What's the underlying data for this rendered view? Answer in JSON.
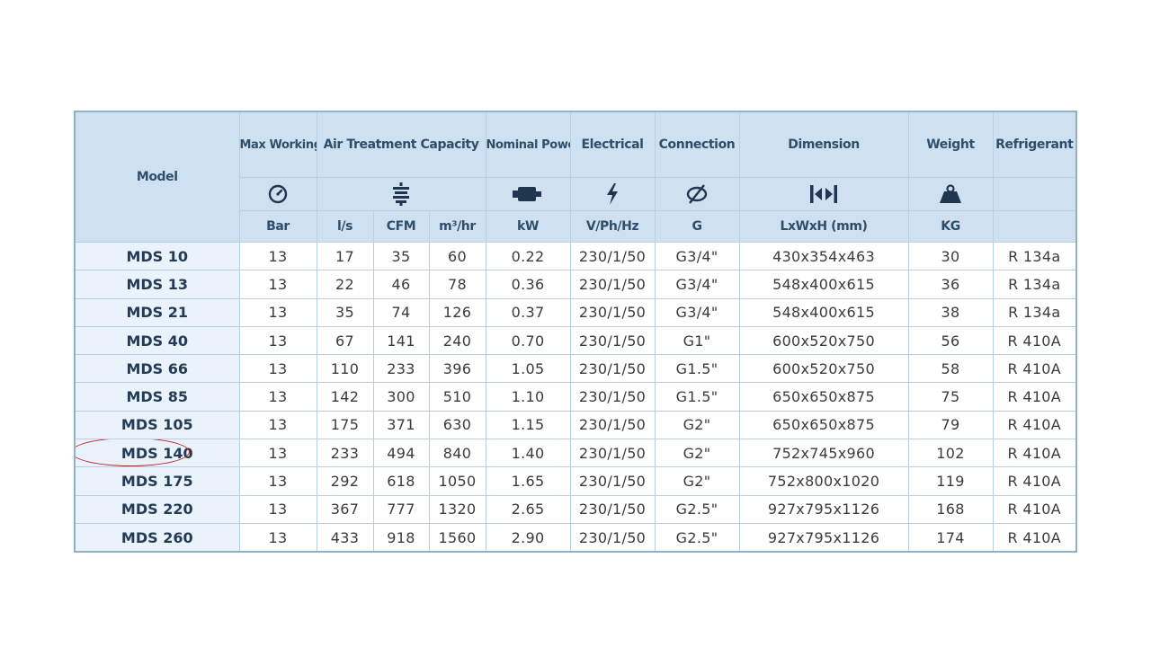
{
  "table": {
    "headers": {
      "model": "Model",
      "max_working_pressure": "Max Working pressure",
      "air_treatment_capacity": "Air Treatment Capacity",
      "nominal_power": "Nominal Power",
      "electrical": "Electrical",
      "connection": "Connection",
      "dimension": "Dimension",
      "weight": "Weight",
      "refrigerant": "Refrigerant"
    },
    "icons": {
      "pressure": "pressure-gauge-icon",
      "air_treatment": "air-filter-icon",
      "power": "motor-icon",
      "electrical": "lightning-bolt-icon",
      "connection": "diameter-icon",
      "dimension": "dimension-arrows-icon",
      "weight": "weight-icon"
    },
    "units": {
      "pressure": "Bar",
      "flow_ls": "l/s",
      "flow_cfm": "CFM",
      "flow_m3hr": "m³/hr",
      "power": "kW",
      "electrical": "V/Ph/Hz",
      "connection": "G",
      "dimension": "LxWxH (mm)",
      "weight": "KG"
    },
    "rows": [
      {
        "model": "MDS 10",
        "pressure": "13",
        "ls": "17",
        "cfm": "35",
        "m3hr": "60",
        "kw": "0.22",
        "electrical": "230/1/50",
        "connection": "G3/4\"",
        "dimension": "430x354x463",
        "weight": "30",
        "refrigerant": "R 134a"
      },
      {
        "model": "MDS 13",
        "pressure": "13",
        "ls": "22",
        "cfm": "46",
        "m3hr": "78",
        "kw": "0.36",
        "electrical": "230/1/50",
        "connection": "G3/4\"",
        "dimension": "548x400x615",
        "weight": "36",
        "refrigerant": "R 134a"
      },
      {
        "model": "MDS 21",
        "pressure": "13",
        "ls": "35",
        "cfm": "74",
        "m3hr": "126",
        "kw": "0.37",
        "electrical": "230/1/50",
        "connection": "G3/4\"",
        "dimension": "548x400x615",
        "weight": "38",
        "refrigerant": "R 134a"
      },
      {
        "model": "MDS 40",
        "pressure": "13",
        "ls": "67",
        "cfm": "141",
        "m3hr": "240",
        "kw": "0.70",
        "electrical": "230/1/50",
        "connection": "G1\"",
        "dimension": "600x520x750",
        "weight": "56",
        "refrigerant": "R 410A"
      },
      {
        "model": "MDS 66",
        "pressure": "13",
        "ls": "110",
        "cfm": "233",
        "m3hr": "396",
        "kw": "1.05",
        "electrical": "230/1/50",
        "connection": "G1.5\"",
        "dimension": "600x520x750",
        "weight": "58",
        "refrigerant": "R 410A"
      },
      {
        "model": "MDS 85",
        "pressure": "13",
        "ls": "142",
        "cfm": "300",
        "m3hr": "510",
        "kw": "1.10",
        "electrical": "230/1/50",
        "connection": "G1.5\"",
        "dimension": "650x650x875",
        "weight": "75",
        "refrigerant": "R 410A"
      },
      {
        "model": "MDS 105",
        "pressure": "13",
        "ls": "175",
        "cfm": "371",
        "m3hr": "630",
        "kw": "1.15",
        "electrical": "230/1/50",
        "connection": "G2\"",
        "dimension": "650x650x875",
        "weight": "79",
        "refrigerant": "R 410A"
      },
      {
        "model": "MDS 140",
        "pressure": "13",
        "ls": "233",
        "cfm": "494",
        "m3hr": "840",
        "kw": "1.40",
        "electrical": "230/1/50",
        "connection": "G2\"",
        "dimension": "752x745x960",
        "weight": "102",
        "refrigerant": "R 410A"
      },
      {
        "model": "MDS 175",
        "pressure": "13",
        "ls": "292",
        "cfm": "618",
        "m3hr": "1050",
        "kw": "1.65",
        "electrical": "230/1/50",
        "connection": "G2\"",
        "dimension": "752x800x1020",
        "weight": "119",
        "refrigerant": "R 410A"
      },
      {
        "model": "MDS 220",
        "pressure": "13",
        "ls": "367",
        "cfm": "777",
        "m3hr": "1320",
        "kw": "2.65",
        "electrical": "230/1/50",
        "connection": "G2.5\"",
        "dimension": "927x795x1126",
        "weight": "168",
        "refrigerant": "R 410A"
      },
      {
        "model": "MDS 260",
        "pressure": "13",
        "ls": "433",
        "cfm": "918",
        "m3hr": "1560",
        "kw": "2.90",
        "electrical": "230/1/50",
        "connection": "G2.5\"",
        "dimension": "927x795x1126",
        "weight": "174",
        "refrigerant": "R 410A"
      }
    ],
    "highlighted_model": "MDS 140"
  },
  "colors": {
    "header_bg": "#cfe1f1",
    "header_text": "#2e4e6b",
    "model_col_bg": "#eaf3fb",
    "border": "#b7cfe2",
    "highlight": "#c4161c"
  }
}
